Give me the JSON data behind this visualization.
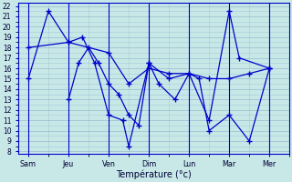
{
  "xlabel": "Température (°c)",
  "background_color": "#c8e8e8",
  "line_color": "#0000cc",
  "grid_color_major": "#99bbcc",
  "grid_color_minor": "#bbdddd",
  "x_labels": [
    "Sam",
    "Jeu",
    "Ven",
    "Dim",
    "Lun",
    "Mar",
    "Mer"
  ],
  "x_tick_pos": [
    0,
    2,
    4,
    6,
    8,
    10,
    12
  ],
  "ylim_min": 8,
  "ylim_max": 22,
  "s1_x": [
    0,
    1,
    2,
    2.7,
    3.3,
    4,
    4.7,
    5,
    6,
    6.5,
    7.3,
    8,
    9,
    10,
    10.5,
    12
  ],
  "s1_y": [
    15.0,
    21.5,
    18.5,
    19.0,
    16.5,
    11.5,
    11.0,
    8.5,
    16.5,
    14.5,
    13.0,
    15.5,
    11.0,
    21.5,
    17.0,
    16.0
  ],
  "s2_x": [
    2,
    2.5,
    3,
    3.5,
    4,
    4.5,
    5,
    5.5,
    6,
    7,
    8,
    8.5,
    9,
    10,
    11,
    12
  ],
  "s2_y": [
    13.0,
    16.5,
    18.0,
    16.5,
    14.5,
    13.5,
    11.5,
    10.5,
    16.5,
    15.0,
    15.5,
    15.0,
    10.0,
    11.5,
    9.0,
    16.0
  ],
  "s3_x": [
    0,
    2,
    4,
    5,
    6,
    7,
    8,
    9,
    10,
    11,
    12
  ],
  "s3_y": [
    18.0,
    18.5,
    17.5,
    14.5,
    16.0,
    15.5,
    15.5,
    15.0,
    15.0,
    15.5,
    16.0
  ]
}
